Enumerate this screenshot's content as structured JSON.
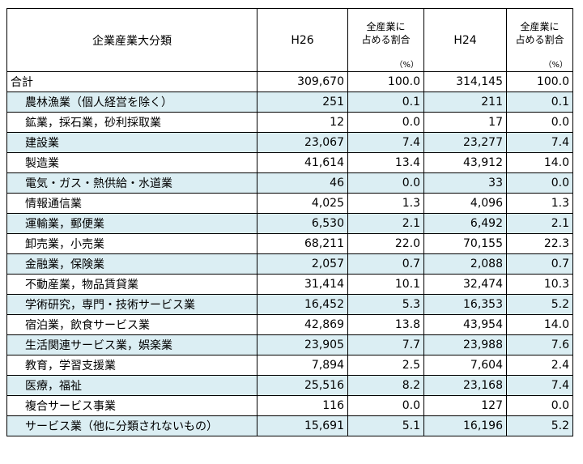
{
  "header": {
    "category": "企業産業大分類",
    "year_a": "H26",
    "share_line1": "全産業に",
    "share_line2": "占める割合",
    "share_unit": "（%）",
    "year_b": "H24"
  },
  "total": {
    "label": "合計",
    "h26": "309,670",
    "h26_share": "100.0",
    "h24": "314,145",
    "h24_share": "100.0"
  },
  "rows": [
    {
      "label": "農林漁業（個人経営を除く）",
      "h26": "251",
      "h26_share": "0.1",
      "h24": "211",
      "h24_share": "0.1"
    },
    {
      "label": "鉱業，採石業，砂利採取業",
      "h26": "12",
      "h26_share": "0.0",
      "h24": "17",
      "h24_share": "0.0"
    },
    {
      "label": "建設業",
      "h26": "23,067",
      "h26_share": "7.4",
      "h24": "23,277",
      "h24_share": "7.4"
    },
    {
      "label": "製造業",
      "h26": "41,614",
      "h26_share": "13.4",
      "h24": "43,912",
      "h24_share": "14.0"
    },
    {
      "label": "電気・ガス・熱供給・水道業",
      "h26": "46",
      "h26_share": "0.0",
      "h24": "33",
      "h24_share": "0.0"
    },
    {
      "label": "情報通信業",
      "h26": "4,025",
      "h26_share": "1.3",
      "h24": "4,096",
      "h24_share": "1.3"
    },
    {
      "label": "運輸業，郵便業",
      "h26": "6,530",
      "h26_share": "2.1",
      "h24": "6,492",
      "h24_share": "2.1"
    },
    {
      "label": "卸売業，小売業",
      "h26": "68,211",
      "h26_share": "22.0",
      "h24": "70,155",
      "h24_share": "22.3"
    },
    {
      "label": "金融業，保険業",
      "h26": "2,057",
      "h26_share": "0.7",
      "h24": "2,088",
      "h24_share": "0.7"
    },
    {
      "label": "不動産業，物品賃貸業",
      "h26": "31,414",
      "h26_share": "10.1",
      "h24": "32,474",
      "h24_share": "10.3"
    },
    {
      "label": "学術研究，専門・技術サービス業",
      "h26": "16,452",
      "h26_share": "5.3",
      "h24": "16,353",
      "h24_share": "5.2"
    },
    {
      "label": "宿泊業，飲食サービス業",
      "h26": "42,869",
      "h26_share": "13.8",
      "h24": "43,954",
      "h24_share": "14.0"
    },
    {
      "label": "生活関連サービス業，娯楽業",
      "h26": "23,905",
      "h26_share": "7.7",
      "h24": "23,988",
      "h24_share": "7.6"
    },
    {
      "label": "教育，学習支援業",
      "h26": "7,894",
      "h26_share": "2.5",
      "h24": "7,604",
      "h24_share": "2.4"
    },
    {
      "label": "医療，福祉",
      "h26": "25,516",
      "h26_share": "8.2",
      "h24": "23,168",
      "h24_share": "7.4"
    },
    {
      "label": "複合サービス事業",
      "h26": "116",
      "h26_share": "0.0",
      "h24": "127",
      "h24_share": "0.0"
    },
    {
      "label": "サービス業（他に分類されないもの）",
      "h26": "15,691",
      "h26_share": "5.1",
      "h24": "16,196",
      "h24_share": "5.2"
    }
  ]
}
